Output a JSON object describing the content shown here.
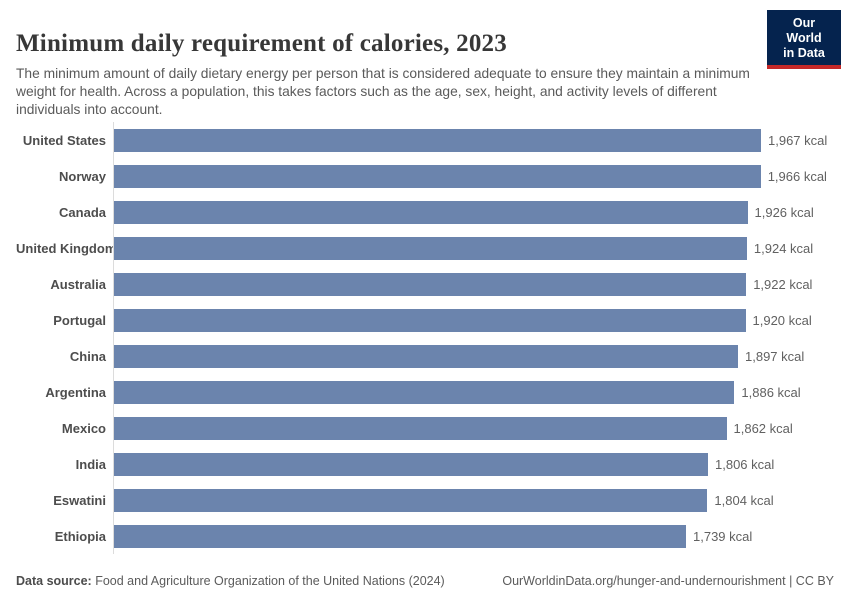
{
  "header": {
    "title": "Minimum daily requirement of calories, 2023",
    "subtitle": "The minimum amount of daily dietary energy per person that is considered adequate to ensure they maintain a minimum weight for health. Across a population, this takes factors such as the age, sex, height, and activity levels of different individuals into account.",
    "logo": {
      "line1": "Our World",
      "line2": "in Data",
      "background_color": "#05234e",
      "accent_color": "#c52828"
    }
  },
  "chart_data": {
    "type": "bar",
    "orientation": "horizontal",
    "title": "Minimum daily requirement of calories, 2023",
    "unit": "kcal",
    "xlim": [
      0,
      1967
    ],
    "grid": false,
    "bar_color": "#6b84ad",
    "categories": [
      "United States",
      "Norway",
      "Canada",
      "United Kingdom",
      "Australia",
      "Portugal",
      "China",
      "Argentina",
      "Mexico",
      "India",
      "Eswatini",
      "Ethiopia"
    ],
    "values": [
      1967,
      1966,
      1926,
      1924,
      1922,
      1920,
      1897,
      1886,
      1862,
      1806,
      1804,
      1739
    ],
    "value_labels": [
      "1,967 kcal",
      "1,966 kcal",
      "1,926 kcal",
      "1,924 kcal",
      "1,922 kcal",
      "1,920 kcal",
      "1,897 kcal",
      "1,886 kcal",
      "1,862 kcal",
      "1,806 kcal",
      "1,804 kcal",
      "1,739 kcal"
    ]
  },
  "footer": {
    "source_label": "Data source:",
    "source_text": " Food and Agriculture Organization of the United Nations (2024)",
    "link_text": "OurWorldinData.org/hunger-and-undernourishment | CC BY"
  }
}
